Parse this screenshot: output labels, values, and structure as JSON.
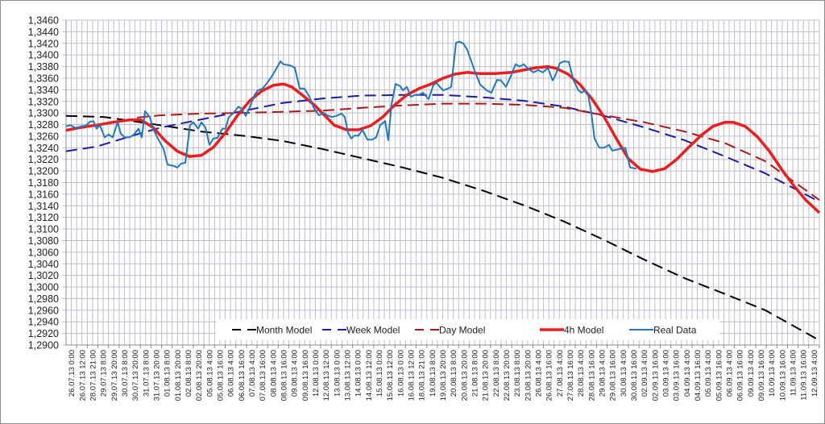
{
  "chart_data": {
    "type": "line",
    "title": "",
    "xlabel": "",
    "ylabel": "",
    "ylim": [
      1.29,
      1.346
    ],
    "ystep": 0.002,
    "grid": true,
    "legend_position": "bottom-inside",
    "y_ticks": [
      "1,2900",
      "1,2920",
      "1,2940",
      "1,2960",
      "1,2980",
      "1,3000",
      "1,3020",
      "1,3040",
      "1,3060",
      "1,3080",
      "1,3100",
      "1,3120",
      "1,3140",
      "1,3160",
      "1,3180",
      "1,3200",
      "1,3220",
      "1,3240",
      "1,3260",
      "1,3280",
      "1,3300",
      "1,3320",
      "1,3340",
      "1,3360",
      "1,3380",
      "1,3400",
      "1,3420",
      "1,3440",
      "1,3460"
    ],
    "categories": [
      "26.07.13 0:00",
      "26.07.13 12:00",
      "28.07.13 21:00",
      "29.07.13 8:00",
      "29.07.13 20:00",
      "30.07.13 8:00",
      "30.07.13 20:00",
      "31.07.13 8:00",
      "31.07.13 20:00",
      "01.08.13 8:00",
      "01.08.13 20:00",
      "02.08.13 8:00",
      "02.08.13 20:00",
      "05.08.13 4:00",
      "05.08.13 16:00",
      "06.08.13 4:00",
      "06.08.13 16:00",
      "07.08.13 4:00",
      "07.08.13 16:00",
      "08.08.13 4:00",
      "08.08.13 16:00",
      "09.08.13 4:00",
      "09.08.13 16:00",
      "12.08.13 0:00",
      "12.08.13 12:00",
      "13.08.13 0:00",
      "13.08.13 12:00",
      "14.08.13 0:00",
      "14.08.13 12:00",
      "15.08.13 0:00",
      "15.08.13 12:00",
      "16.08.13 0:00",
      "16.08.13 12:00",
      "18.08.13 21:00",
      "19.08.13 8:00",
      "19.08.13 20:00",
      "20.08.13 8:00",
      "20.08.13 20:00",
      "21.08.13 8:00",
      "21.08.13 20:00",
      "22.08.13 8:00",
      "22.08.13 20:00",
      "23.08.13 8:00",
      "23.08.13 20:00",
      "26.08.13 4:00",
      "26.08.13 16:00",
      "27.08.13 4:00",
      "27.08.13 16:00",
      "28.08.13 4:00",
      "28.08.13 16:00",
      "29.08.13 4:00",
      "29.08.13 16:00",
      "30.08.13 4:00",
      "30.08.13 16:00",
      "02.09.13 4:00",
      "02.09.13 16:00",
      "03.09.13 4:00",
      "03.09.13 16:00",
      "04.09.13 4:00",
      "04.09.13 16:00",
      "05.09.13 4:00",
      "05.09.13 16:00",
      "06.09.13 4:00",
      "06.09.13 16:00",
      "09.09.13 4:00",
      "09.09.13 16:00",
      "10.09.13 4:00",
      "10.09.13 16:00",
      "11.09.13 4:00",
      "11.09.13 16:00",
      "12.09.13 4:00"
    ],
    "series": [
      {
        "name": "Month Model",
        "color": "#000000",
        "style": "dashed",
        "width": 2,
        "points": [
          [
            -0.5,
            1.3295
          ],
          [
            3.14,
            1.3293
          ],
          [
            6.56,
            1.3284
          ],
          [
            12.26,
            1.3268
          ],
          [
            16.05,
            1.3261
          ],
          [
            19.85,
            1.3252
          ],
          [
            23.64,
            1.3238
          ],
          [
            27.44,
            1.3222
          ],
          [
            31.24,
            1.3206
          ],
          [
            35.04,
            1.3188
          ],
          [
            38.83,
            1.3166
          ],
          [
            42.63,
            1.3141
          ],
          [
            46.42,
            1.3113
          ],
          [
            50.22,
            1.3081
          ],
          [
            54.01,
            1.3047
          ],
          [
            57.81,
            1.3015
          ],
          [
            61.61,
            1.2988
          ],
          [
            65.4,
            1.296
          ],
          [
            70.5,
            1.2908
          ]
        ]
      },
      {
        "name": "Week Model",
        "color": "#1f1aa8",
        "style": "dashed",
        "width": 2,
        "points": [
          [
            -0.5,
            1.3234
          ],
          [
            2.38,
            1.3242
          ],
          [
            5.42,
            1.3259
          ],
          [
            8.46,
            1.3275
          ],
          [
            12.26,
            1.3289
          ],
          [
            16.05,
            1.3303
          ],
          [
            19.85,
            1.3317
          ],
          [
            23.64,
            1.3325
          ],
          [
            27.44,
            1.333
          ],
          [
            31.24,
            1.3331
          ],
          [
            35.04,
            1.3331
          ],
          [
            38.83,
            1.3327
          ],
          [
            42.63,
            1.3321
          ],
          [
            46.42,
            1.3311
          ],
          [
            50.22,
            1.3295
          ],
          [
            54.01,
            1.3275
          ],
          [
            57.81,
            1.3253
          ],
          [
            61.61,
            1.3225
          ],
          [
            65.4,
            1.3196
          ],
          [
            70.5,
            1.3147
          ]
        ]
      },
      {
        "name": "Day Model",
        "color": "#b01818",
        "style": "dashed",
        "width": 2,
        "points": [
          [
            6.2,
            1.3292
          ],
          [
            8.46,
            1.3296
          ],
          [
            12.26,
            1.3299
          ],
          [
            16.05,
            1.33
          ],
          [
            19.85,
            1.3302
          ],
          [
            23.64,
            1.3304
          ],
          [
            27.44,
            1.3309
          ],
          [
            31.24,
            1.3313
          ],
          [
            35.04,
            1.3316
          ],
          [
            38.83,
            1.3316
          ],
          [
            42.63,
            1.3314
          ],
          [
            46.42,
            1.3309
          ],
          [
            50.22,
            1.3296
          ],
          [
            54.01,
            1.3284
          ],
          [
            57.81,
            1.3268
          ],
          [
            61.61,
            1.3248
          ],
          [
            65.4,
            1.3217
          ],
          [
            70.5,
            1.315
          ]
        ]
      },
      {
        "name": "4h Model",
        "color": "#ee1c1c",
        "style": "solid",
        "width": 3.5,
        "points": [
          [
            -0.5,
            1.327
          ],
          [
            0.87,
            1.3275
          ],
          [
            2.38,
            1.3279
          ],
          [
            3.9,
            1.3284
          ],
          [
            5.42,
            1.3288
          ],
          [
            6.56,
            1.3288
          ],
          [
            7.7,
            1.3275
          ],
          [
            8.84,
            1.3252
          ],
          [
            9.98,
            1.3234
          ],
          [
            11.12,
            1.3225
          ],
          [
            12.26,
            1.3227
          ],
          [
            13.39,
            1.3241
          ],
          [
            14.53,
            1.3266
          ],
          [
            15.67,
            1.3296
          ],
          [
            16.81,
            1.3321
          ],
          [
            17.95,
            1.3338
          ],
          [
            19.09,
            1.3348
          ],
          [
            20.0,
            1.335
          ],
          [
            20.76,
            1.3345
          ],
          [
            21.75,
            1.3331
          ],
          [
            22.89,
            1.3314
          ],
          [
            23.64,
            1.33
          ],
          [
            24.78,
            1.3279
          ],
          [
            25.93,
            1.3271
          ],
          [
            27.06,
            1.3271
          ],
          [
            28.2,
            1.3278
          ],
          [
            29.34,
            1.3293
          ],
          [
            30.48,
            1.3314
          ],
          [
            31.62,
            1.3331
          ],
          [
            32.76,
            1.3342
          ],
          [
            33.9,
            1.335
          ],
          [
            35.04,
            1.336
          ],
          [
            36.18,
            1.3367
          ],
          [
            37.31,
            1.337
          ],
          [
            38.45,
            1.3368
          ],
          [
            39.97,
            1.3368
          ],
          [
            41.49,
            1.337
          ],
          [
            42.63,
            1.3374
          ],
          [
            43.77,
            1.3378
          ],
          [
            44.91,
            1.338
          ],
          [
            45.67,
            1.3377
          ],
          [
            46.81,
            1.3367
          ],
          [
            47.94,
            1.3349
          ],
          [
            49.08,
            1.3324
          ],
          [
            50.22,
            1.3293
          ],
          [
            51.36,
            1.3256
          ],
          [
            52.5,
            1.3221
          ],
          [
            53.64,
            1.3203
          ],
          [
            54.78,
            1.3199
          ],
          [
            55.92,
            1.3204
          ],
          [
            57.05,
            1.322
          ],
          [
            58.19,
            1.3241
          ],
          [
            59.33,
            1.3261
          ],
          [
            60.47,
            1.3277
          ],
          [
            61.61,
            1.3284
          ],
          [
            62.37,
            1.3284
          ],
          [
            63.51,
            1.3277
          ],
          [
            64.65,
            1.3259
          ],
          [
            65.79,
            1.3234
          ],
          [
            66.93,
            1.3203
          ],
          [
            68.07,
            1.3175
          ],
          [
            69.21,
            1.315
          ],
          [
            70.5,
            1.3128
          ]
        ]
      },
      {
        "name": "Real Data",
        "color": "#1f78c0",
        "style": "solid",
        "width": 2,
        "points": [
          [
            -0.5,
            1.3277
          ],
          [
            -0.05,
            1.3279
          ],
          [
            0.49,
            1.3273
          ],
          [
            0.87,
            1.3277
          ],
          [
            1.32,
            1.3278
          ],
          [
            1.78,
            1.3285
          ],
          [
            2.08,
            1.3286
          ],
          [
            2.38,
            1.3273
          ],
          [
            2.69,
            1.3279
          ],
          [
            3.14,
            1.3258
          ],
          [
            3.52,
            1.3263
          ],
          [
            3.9,
            1.3258
          ],
          [
            4.36,
            1.3284
          ],
          [
            4.66,
            1.3264
          ],
          [
            5.04,
            1.3258
          ],
          [
            5.42,
            1.3258
          ],
          [
            5.8,
            1.3261
          ],
          [
            6.33,
            1.3273
          ],
          [
            6.64,
            1.3258
          ],
          [
            6.94,
            1.3303
          ],
          [
            7.4,
            1.3293
          ],
          [
            7.7,
            1.3273
          ],
          [
            8.16,
            1.3256
          ],
          [
            8.69,
            1.3238
          ],
          [
            9.07,
            1.3211
          ],
          [
            9.6,
            1.3209
          ],
          [
            9.98,
            1.3206
          ],
          [
            10.36,
            1.3213
          ],
          [
            10.74,
            1.3214
          ],
          [
            11.19,
            1.3279
          ],
          [
            11.5,
            1.3284
          ],
          [
            11.95,
            1.3273
          ],
          [
            12.26,
            1.3284
          ],
          [
            12.64,
            1.3275
          ],
          [
            13.02,
            1.3245
          ],
          [
            13.39,
            1.3256
          ],
          [
            13.77,
            1.3257
          ],
          [
            14.23,
            1.3273
          ],
          [
            14.53,
            1.3273
          ],
          [
            14.84,
            1.3293
          ],
          [
            15.29,
            1.33
          ],
          [
            15.75,
            1.3311
          ],
          [
            16.05,
            1.3307
          ],
          [
            16.43,
            1.3295
          ],
          [
            16.81,
            1.331
          ],
          [
            17.27,
            1.3331
          ],
          [
            17.57,
            1.3339
          ],
          [
            18.03,
            1.3342
          ],
          [
            18.33,
            1.3349
          ],
          [
            18.78,
            1.336
          ],
          [
            19.24,
            1.3374
          ],
          [
            19.7,
            1.3389
          ],
          [
            20.0,
            1.3384
          ],
          [
            20.61,
            1.3382
          ],
          [
            21.06,
            1.3378
          ],
          [
            21.52,
            1.3342
          ],
          [
            21.97,
            1.3342
          ],
          [
            22.43,
            1.3328
          ],
          [
            22.89,
            1.3307
          ],
          [
            23.34,
            1.3296
          ],
          [
            23.8,
            1.33
          ],
          [
            24.1,
            1.3296
          ],
          [
            24.56,
            1.3293
          ],
          [
            25.01,
            1.3295
          ],
          [
            25.47,
            1.3299
          ],
          [
            25.77,
            1.3293
          ],
          [
            26.08,
            1.3266
          ],
          [
            26.38,
            1.3256
          ],
          [
            26.68,
            1.3261
          ],
          [
            27.06,
            1.3261
          ],
          [
            27.44,
            1.3271
          ],
          [
            27.9,
            1.3254
          ],
          [
            28.35,
            1.3254
          ],
          [
            28.73,
            1.3258
          ],
          [
            29.11,
            1.3279
          ],
          [
            29.57,
            1.3286
          ],
          [
            29.87,
            1.3253
          ],
          [
            30.17,
            1.3314
          ],
          [
            30.55,
            1.335
          ],
          [
            31.01,
            1.3346
          ],
          [
            31.24,
            1.3339
          ],
          [
            31.62,
            1.3345
          ],
          [
            32.0,
            1.3328
          ],
          [
            32.38,
            1.3331
          ],
          [
            32.76,
            1.3331
          ],
          [
            33.14,
            1.3335
          ],
          [
            33.67,
            1.3324
          ],
          [
            34.12,
            1.3348
          ],
          [
            34.43,
            1.3352
          ],
          [
            34.73,
            1.3345
          ],
          [
            35.04,
            1.3339
          ],
          [
            35.49,
            1.3342
          ],
          [
            35.8,
            1.3345
          ],
          [
            36.25,
            1.3421
          ],
          [
            36.55,
            1.3423
          ],
          [
            36.93,
            1.342
          ],
          [
            37.31,
            1.3409
          ],
          [
            38.07,
            1.337
          ],
          [
            38.53,
            1.3349
          ],
          [
            39.14,
            1.3339
          ],
          [
            39.59,
            1.3335
          ],
          [
            40.12,
            1.3357
          ],
          [
            40.5,
            1.3356
          ],
          [
            40.96,
            1.3345
          ],
          [
            41.41,
            1.3363
          ],
          [
            41.87,
            1.3384
          ],
          [
            42.25,
            1.338
          ],
          [
            42.63,
            1.3384
          ],
          [
            43.01,
            1.3377
          ],
          [
            43.54,
            1.337
          ],
          [
            44.0,
            1.3374
          ],
          [
            44.45,
            1.337
          ],
          [
            44.91,
            1.3378
          ],
          [
            45.36,
            1.3356
          ],
          [
            45.67,
            1.3367
          ],
          [
            46.04,
            1.3386
          ],
          [
            46.42,
            1.3389
          ],
          [
            46.88,
            1.3388
          ],
          [
            47.34,
            1.3356
          ],
          [
            47.79,
            1.3339
          ],
          [
            48.1,
            1.3335
          ],
          [
            48.4,
            1.3339
          ],
          [
            48.7,
            1.3332
          ],
          [
            49.01,
            1.33
          ],
          [
            49.31,
            1.3256
          ],
          [
            49.76,
            1.324
          ],
          [
            50.22,
            1.324
          ],
          [
            50.67,
            1.3245
          ],
          [
            50.98,
            1.3235
          ],
          [
            52.2,
            1.324
          ],
          [
            52.66,
            1.3206
          ],
          [
            53.26,
            1.3204
          ]
        ]
      }
    ]
  }
}
